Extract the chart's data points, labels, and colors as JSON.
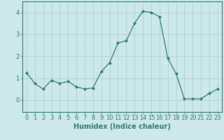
{
  "x": [
    0,
    1,
    2,
    3,
    4,
    5,
    6,
    7,
    8,
    9,
    10,
    11,
    12,
    13,
    14,
    15,
    16,
    17,
    18,
    19,
    20,
    21,
    22,
    23
  ],
  "y": [
    1.25,
    0.75,
    0.5,
    0.9,
    0.75,
    0.85,
    0.6,
    0.5,
    0.55,
    1.3,
    1.7,
    2.6,
    2.7,
    3.5,
    4.05,
    4.0,
    3.8,
    1.9,
    1.2,
    0.05,
    0.05,
    0.05,
    0.3,
    0.5
  ],
  "line_color": "#2e7d6e",
  "marker": "D",
  "marker_size": 2,
  "bg_color": "#cce8e8",
  "grid_color": "#aacfcf",
  "xlabel": "Humidex (Indice chaleur)",
  "xlabel_fontsize": 7,
  "ylabel_ticks": [
    0,
    1,
    2,
    3,
    4
  ],
  "xlim": [
    -0.5,
    23.5
  ],
  "ylim": [
    -0.55,
    4.5
  ],
  "tick_label_fontsize": 6,
  "linewidth": 0.9
}
